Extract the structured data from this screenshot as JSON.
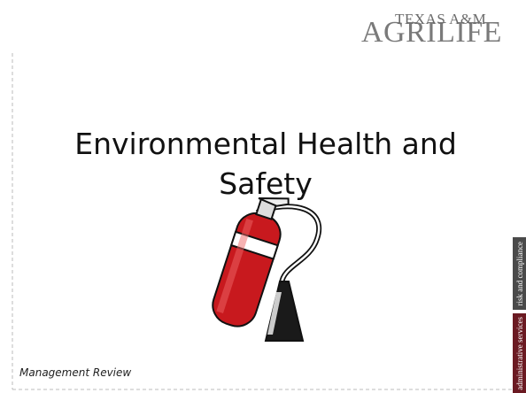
{
  "logo": {
    "top": "TEXAS A&M",
    "bottom": "AGRILIFE"
  },
  "title": "Environmental Health and Safety",
  "footer": "Management Review",
  "tabs": [
    "risk and compliance",
    "administrative services"
  ]
}
